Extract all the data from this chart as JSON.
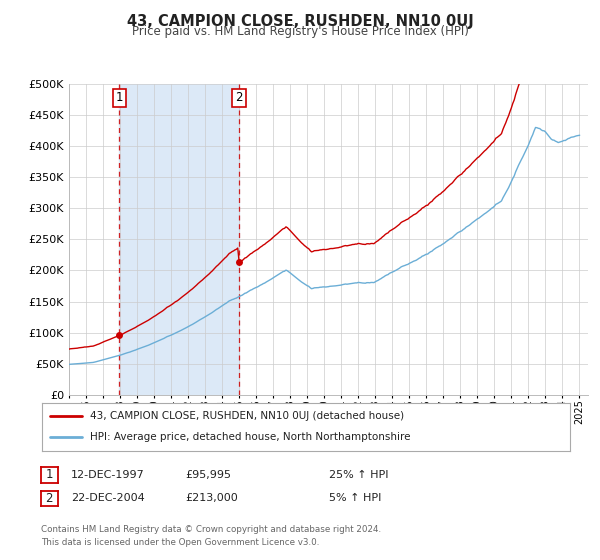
{
  "title": "43, CAMPION CLOSE, RUSHDEN, NN10 0UJ",
  "subtitle": "Price paid vs. HM Land Registry's House Price Index (HPI)",
  "background_color": "#ffffff",
  "plot_bg_color": "#ffffff",
  "grid_color": "#cccccc",
  "hpi_shaded_color": "#dce9f7",
  "ylim": [
    0,
    500000
  ],
  "yticks": [
    0,
    50000,
    100000,
    150000,
    200000,
    250000,
    300000,
    350000,
    400000,
    450000,
    500000
  ],
  "ytick_labels": [
    "£0",
    "£50K",
    "£100K",
    "£150K",
    "£200K",
    "£250K",
    "£300K",
    "£350K",
    "£400K",
    "£450K",
    "£500K"
  ],
  "xlim_start": 1995.0,
  "xlim_end": 2025.5,
  "xtick_years": [
    1995,
    1996,
    1997,
    1998,
    1999,
    2000,
    2001,
    2002,
    2003,
    2004,
    2005,
    2006,
    2007,
    2008,
    2009,
    2010,
    2011,
    2012,
    2013,
    2014,
    2015,
    2016,
    2017,
    2018,
    2019,
    2020,
    2021,
    2022,
    2023,
    2024,
    2025
  ],
  "sale1_x": 1997.96,
  "sale1_y": 95995,
  "sale1_label": "1",
  "sale1_date": "12-DEC-1997",
  "sale1_price": "£95,995",
  "sale1_hpi": "25% ↑ HPI",
  "sale2_x": 2004.98,
  "sale2_y": 213000,
  "sale2_label": "2",
  "sale2_date": "22-DEC-2004",
  "sale2_price": "£213,000",
  "sale2_hpi": "5% ↑ HPI",
  "property_line_color": "#cc0000",
  "hpi_line_color": "#6baed6",
  "legend_property_label": "43, CAMPION CLOSE, RUSHDEN, NN10 0UJ (detached house)",
  "legend_hpi_label": "HPI: Average price, detached house, North Northamptonshire",
  "footer_line1": "Contains HM Land Registry data © Crown copyright and database right 2024.",
  "footer_line2": "This data is licensed under the Open Government Licence v3.0."
}
